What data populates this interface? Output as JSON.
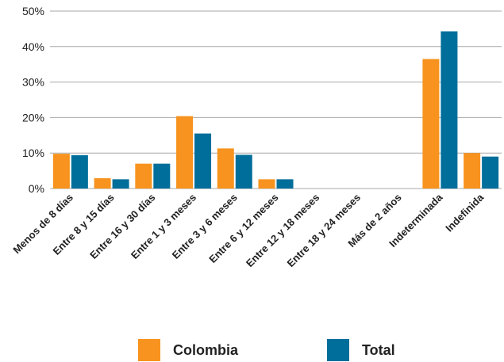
{
  "colors": {
    "colombia": "#f7931e",
    "total": "#006e9a",
    "grid": "#a8a8a8"
  },
  "chart_data": {
    "type": "bar",
    "categories": [
      "Menos de 8 días",
      "Entre 8 y 15 días",
      "Entre 16 y 30 días",
      "Entre 1 y 3 meses",
      "Entre 3 y 6 meses",
      "Entre 6 y 12 meses",
      "Entre 12 y 18 meses",
      "Entre 18 y 24 meses",
      "Más de 2 años",
      "Indeterminada",
      "Indefinida"
    ],
    "series": [
      {
        "name": "Colombia",
        "values": [
          9.8,
          2.9,
          7.0,
          20.4,
          11.3,
          2.6,
          0,
          0,
          0,
          36.5,
          10.0
        ]
      },
      {
        "name": "Total",
        "values": [
          9.4,
          2.6,
          7.0,
          15.5,
          9.5,
          2.6,
          0,
          0,
          0,
          44.3,
          9.0
        ]
      }
    ],
    "yticks": [
      "0%",
      "10%",
      "20%",
      "30%",
      "40%",
      "50%"
    ],
    "ylim": [
      0,
      50
    ],
    "grid": true,
    "legend_position": "bottom"
  }
}
